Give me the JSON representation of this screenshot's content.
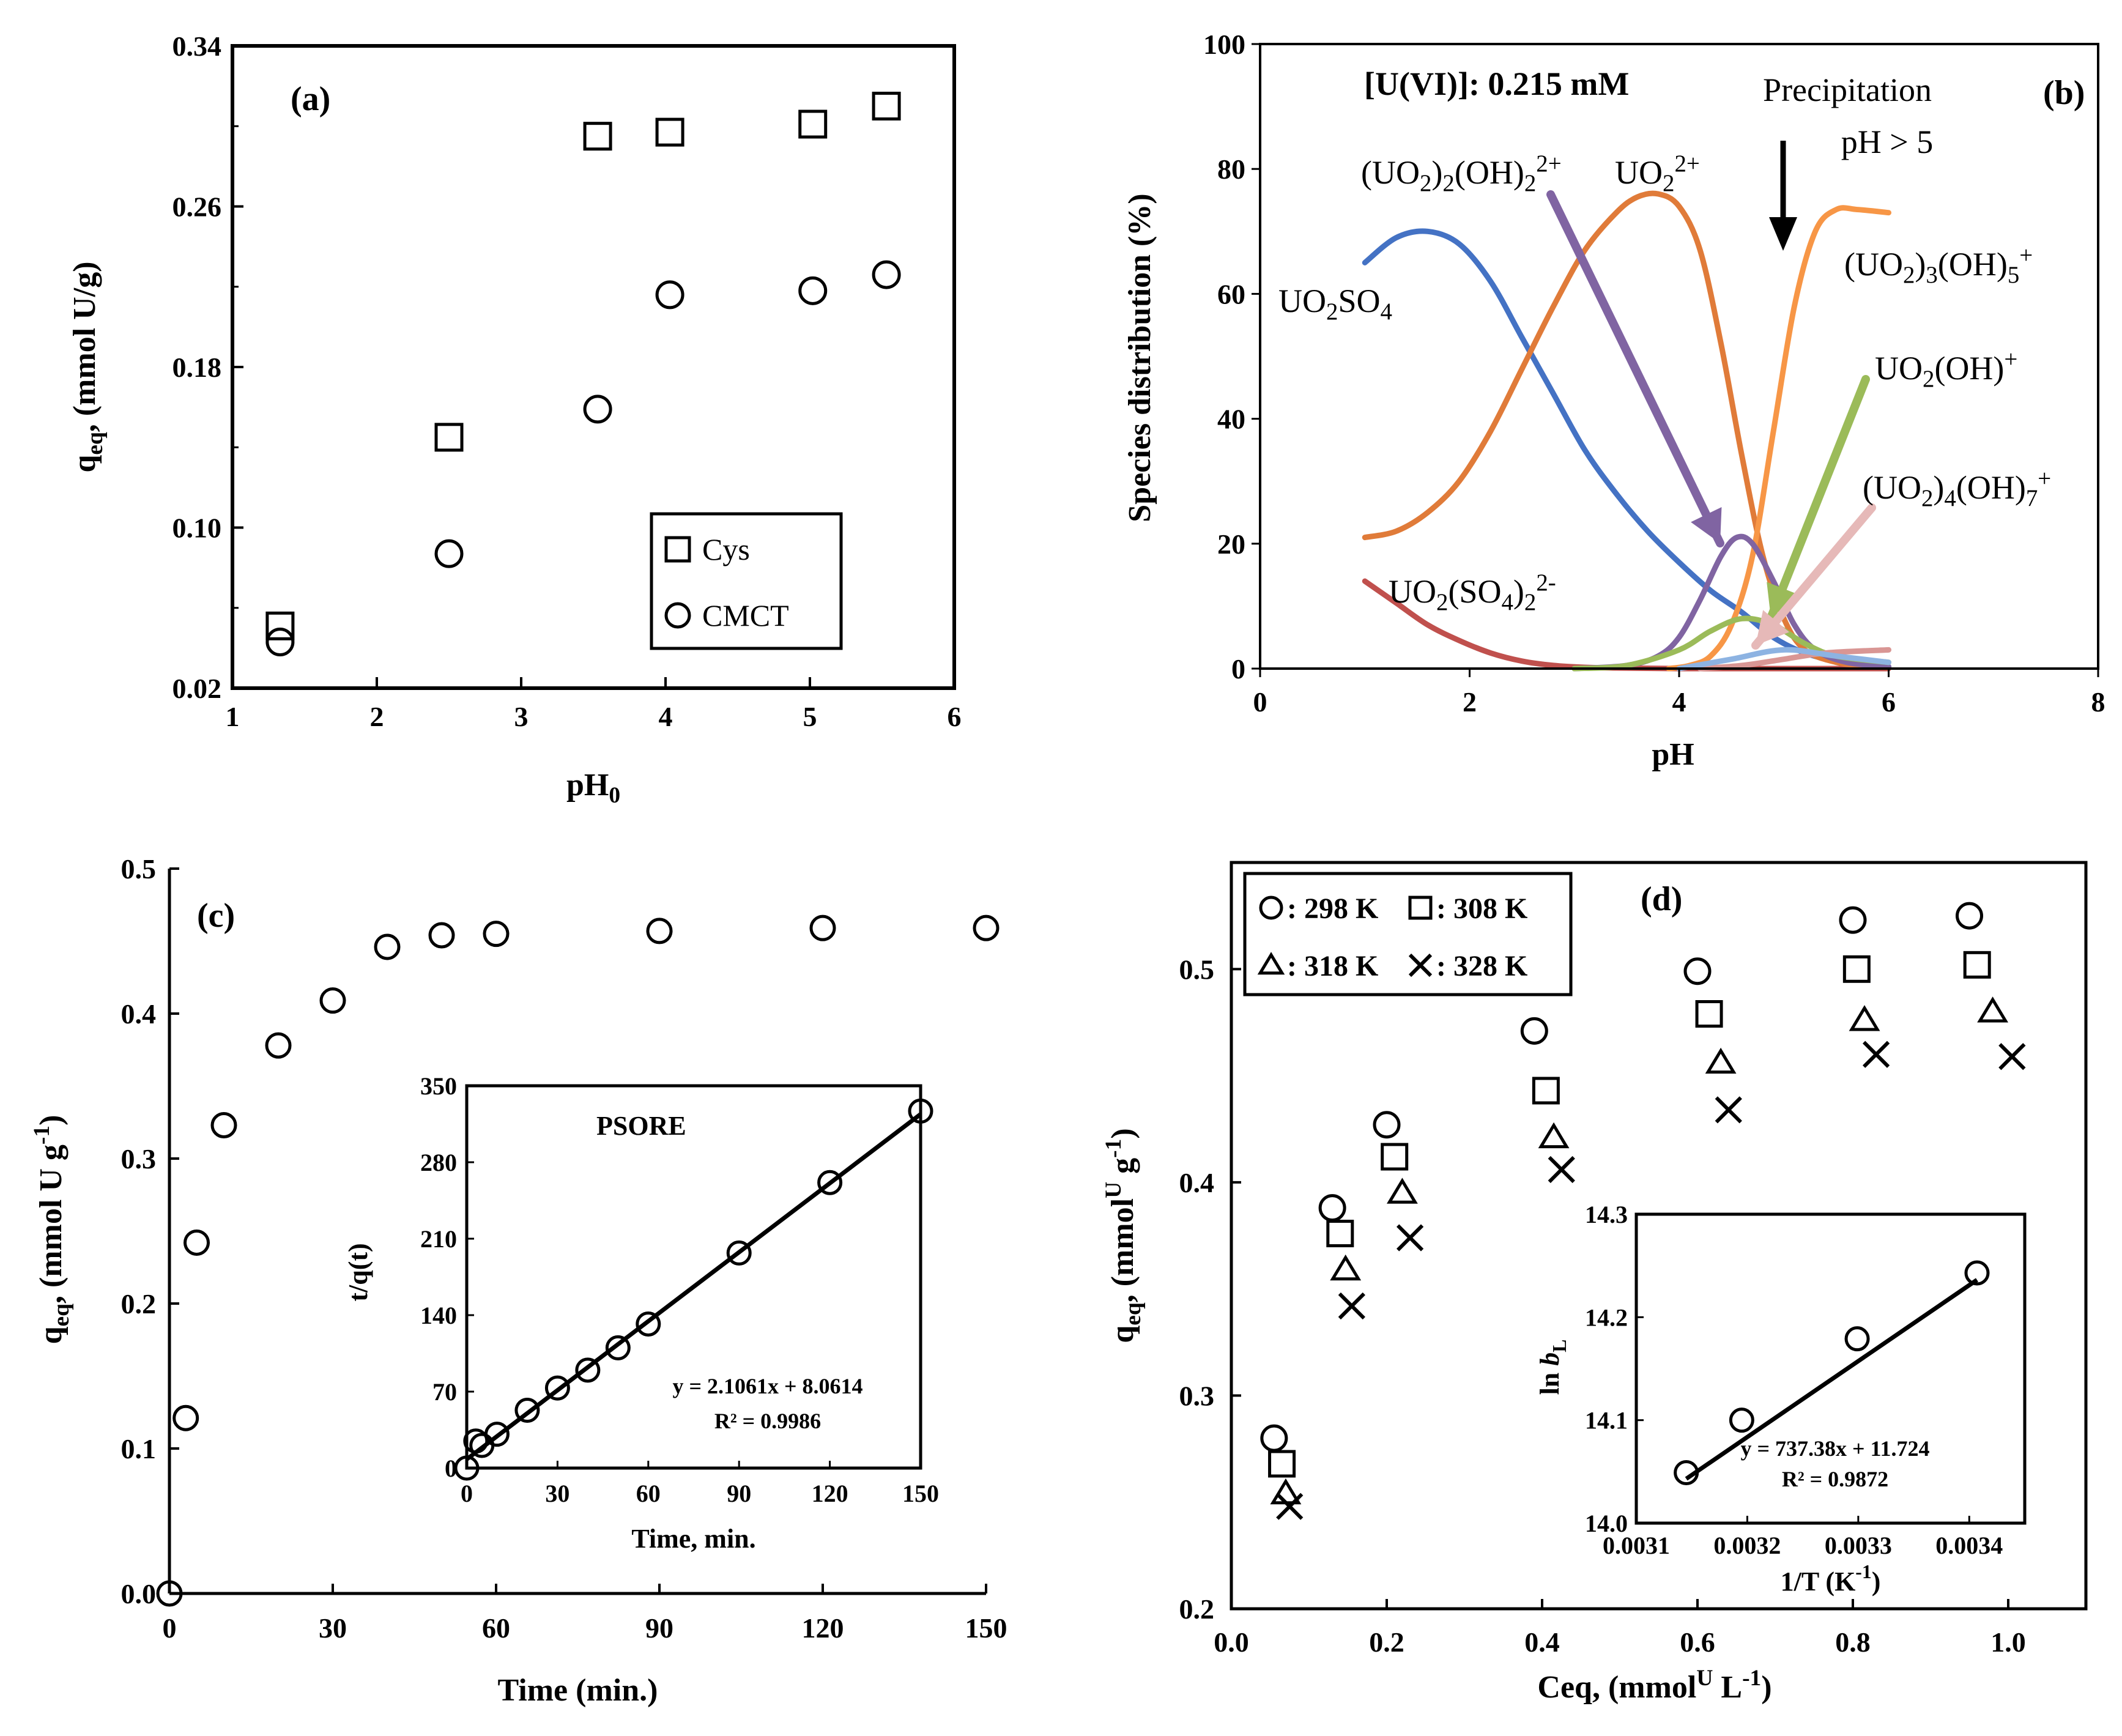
{
  "chart_data": [
    {
      "panel": "(a)",
      "type": "scatter",
      "title": "",
      "xlabel_main": "pH",
      "xlabel_sub": "0",
      "ylabel_main": "q",
      "ylabel_sub": "eq",
      "ylabel_rest": ", (mmol U/g)",
      "xlim": [
        1,
        6
      ],
      "ylim": [
        0.02,
        0.34
      ],
      "xticks": [
        1,
        2,
        3,
        4,
        5,
        6
      ],
      "yticks": [
        0.02,
        0.1,
        0.18,
        0.26,
        0.34
      ],
      "yticklabels": [
        "0.02",
        "0.10",
        "0.18",
        "0.26",
        "0.34"
      ],
      "legend_position": "bottom-right",
      "series": [
        {
          "name": "Cys",
          "marker": "square",
          "x": [
            1.33,
            2.5,
            3.53,
            4.03,
            5.02,
            5.53
          ],
          "y": [
            0.051,
            0.145,
            0.295,
            0.297,
            0.301,
            0.31
          ]
        },
        {
          "name": "CMCT",
          "marker": "circle",
          "x": [
            1.33,
            2.5,
            3.53,
            4.03,
            5.02,
            5.53
          ],
          "y": [
            0.043,
            0.087,
            0.159,
            0.216,
            0.218,
            0.226
          ]
        }
      ]
    },
    {
      "panel": "(b)",
      "type": "line",
      "title": "",
      "xlabel": "pH",
      "ylabel": "Species distribution  (%)",
      "xlim": [
        0,
        8
      ],
      "ylim": [
        0,
        100
      ],
      "xticks": [
        0,
        2,
        4,
        6,
        8
      ],
      "yticks": [
        0,
        20,
        40,
        60,
        80,
        100
      ],
      "concentration_note": "[U(VI)]:  0.215 mM",
      "precipitation_line1": "Precipitation",
      "precipitation_line2": "pH > 5",
      "series": [
        {
          "color": "#4472c4",
          "x": [
            1.0,
            1.3,
            1.6,
            1.9,
            2.2,
            2.5,
            2.8,
            3.1,
            3.4,
            3.7,
            4.0,
            4.3,
            4.6,
            4.9,
            5.2,
            5.5,
            5.8,
            6.0
          ],
          "y": [
            65,
            69,
            70,
            68,
            62,
            53,
            44,
            35,
            28,
            22,
            17,
            12.5,
            9,
            5,
            2.5,
            1.2,
            0.6,
            0.3
          ]
        },
        {
          "color": "#c0504d",
          "x": [
            1.0,
            1.3,
            1.6,
            1.9,
            2.2,
            2.5,
            2.8,
            3.1,
            3.4,
            4.0,
            5.0,
            6.0
          ],
          "y": [
            14,
            10.5,
            7,
            4.5,
            2.5,
            1.2,
            0.5,
            0.2,
            0.1,
            0,
            0,
            0
          ]
        },
        {
          "color": "#e07b39",
          "x": [
            1.0,
            1.3,
            1.6,
            1.9,
            2.2,
            2.5,
            2.8,
            3.1,
            3.4,
            3.6,
            3.8,
            4.0,
            4.2,
            4.4,
            4.6,
            4.8,
            5.0,
            5.2,
            5.5,
            5.8,
            6.0
          ],
          "y": [
            21,
            22,
            25,
            30,
            38,
            48,
            58,
            67,
            73,
            75.5,
            76,
            74,
            67,
            52,
            34,
            18,
            8,
            3,
            1,
            0.4,
            0.2
          ]
        },
        {
          "color": "#f79646",
          "x": [
            3.9,
            4.1,
            4.3,
            4.5,
            4.7,
            4.9,
            5.1,
            5.3,
            5.5,
            5.7,
            6.0
          ],
          "y": [
            0,
            0.5,
            2,
            7,
            18,
            38,
            58,
            70,
            73.5,
            73.5,
            73
          ]
        },
        {
          "color": "#8064a2",
          "x": [
            3.0,
            3.5,
            3.8,
            4.0,
            4.2,
            4.4,
            4.55,
            4.7,
            4.9,
            5.1,
            5.3,
            5.6,
            6.0
          ],
          "y": [
            0,
            0.5,
            2,
            5,
            11,
            18,
            21,
            20,
            14,
            7,
            3,
            1,
            0.3
          ]
        },
        {
          "color": "#9bbb59",
          "x": [
            3.0,
            3.5,
            4.0,
            4.3,
            4.6,
            4.9,
            5.2,
            5.5,
            6.0
          ],
          "y": [
            0,
            0.5,
            3,
            6,
            8,
            7,
            4,
            2,
            1
          ]
        },
        {
          "color": "#d99694",
          "x": [
            4.2,
            4.6,
            5.0,
            5.4,
            6.0
          ],
          "y": [
            0,
            0.5,
            1.5,
            2.5,
            3
          ]
        },
        {
          "color": "#8db3e2",
          "x": [
            4.0,
            4.5,
            5.0,
            5.5,
            6.0
          ],
          "y": [
            0,
            1.5,
            3,
            2,
            1
          ]
        }
      ],
      "annotations": [
        {
          "main": "UO",
          "sub1": "2",
          "main2": "SO",
          "sub2": "4"
        },
        {
          "main": "UO",
          "sub1": "2",
          "main2": "(SO",
          "sub2": "4",
          "main3": ")",
          "sub3": "2",
          "sup": "2-"
        },
        {
          "main": "(UO",
          "sub1": "2",
          "main2": ")",
          "sub2": "2",
          "main3": "(OH)",
          "sub3": "2",
          "sup": "2+"
        },
        {
          "main": "UO",
          "sub1": "2",
          "sup": "2+"
        },
        {
          "main": "(UO",
          "sub1": "2",
          "main2": ")",
          "sub2": "3",
          "main3": "(OH)",
          "sub3": "5",
          "sup": "+"
        },
        {
          "main": "UO",
          "sub1": "2",
          "main2": "(OH)",
          "sup": "+"
        },
        {
          "main": "(UO",
          "sub1": "2",
          "main2": ")",
          "sub2": "4",
          "main3": "(OH)",
          "sub3": "7",
          "sup": "+"
        }
      ]
    },
    {
      "panel": "(c)",
      "type": "scatter",
      "title": "",
      "xlabel": "Time (min.)",
      "ylabel_main": "q",
      "ylabel_sub": "eq",
      "ylabel_rest": ", (mmol U g",
      "ylabel_sup": "-1",
      "ylabel_end": ")",
      "xlim": [
        0,
        150
      ],
      "ylim": [
        0,
        0.5
      ],
      "xticks": [
        0,
        30,
        60,
        90,
        120,
        150
      ],
      "yticks": [
        0.0,
        0.1,
        0.2,
        0.3,
        0.4,
        0.5
      ],
      "yticklabels": [
        "0.0",
        "0.1",
        "0.2",
        "0.3",
        "0.4",
        "0.5"
      ],
      "series": [
        {
          "marker": "circle",
          "x": [
            0,
            3,
            5,
            10,
            20,
            30,
            40,
            50,
            60,
            90,
            120,
            150
          ],
          "y": [
            0,
            0.121,
            0.242,
            0.323,
            0.378,
            0.409,
            0.446,
            0.454,
            0.455,
            0.457,
            0.459,
            0.459
          ]
        }
      ],
      "inset": {
        "title": "PSORE",
        "xlabel": "Time, min.",
        "ylabel": "t/q(t)",
        "xlim": [
          0,
          150
        ],
        "ylim": [
          0,
          350
        ],
        "xticks": [
          0,
          30,
          60,
          90,
          120,
          150
        ],
        "yticks": [
          0,
          70,
          140,
          210,
          280,
          350
        ],
        "points": {
          "x": [
            0,
            3,
            5,
            10,
            20,
            30,
            40,
            50,
            60,
            90,
            120,
            150
          ],
          "y": [
            0,
            24.8,
            20.7,
            31,
            52.9,
            73.3,
            89.7,
            110.1,
            131.9,
            196.9,
            261.4,
            326.8
          ]
        },
        "fit": {
          "slope": 2.1061,
          "intercept": 8.0614,
          "x_range": [
            0,
            150
          ]
        },
        "equation": "y = 2.1061x + 8.0614",
        "r2": "R² = 0.9986"
      }
    },
    {
      "panel": "(d)",
      "type": "scatter",
      "title": "",
      "xlabel_main": "Ceq, (mmol",
      "xlabel_sup": "U",
      "xlabel_rest": " L",
      "xlabel_sup2": "-1",
      "xlabel_end": ")",
      "ylabel_main": "q",
      "ylabel_sub": "eq",
      "ylabel_rest": ", (mmol",
      "ylabel_sup": "U",
      "ylabel_rest2": " g",
      "ylabel_sup2": "-1",
      "ylabel_end": ")",
      "xlim": [
        0,
        1.1
      ],
      "ylim": [
        0.2,
        0.55
      ],
      "xticks": [
        0.0,
        0.2,
        0.4,
        0.6,
        0.8,
        1.0
      ],
      "xticklabels": [
        "0.0",
        "0.2",
        "0.4",
        "0.6",
        "0.8",
        "1.0"
      ],
      "yticks": [
        0.2,
        0.3,
        0.4,
        0.5
      ],
      "yticklabels": [
        "0.2",
        "0.3",
        "0.4",
        "0.5"
      ],
      "legend_position": "top-left",
      "series": [
        {
          "name": ": 298 K",
          "marker": "circle",
          "x": [
            0.055,
            0.13,
            0.2,
            0.39,
            0.6,
            0.8,
            0.95
          ],
          "y": [
            0.28,
            0.388,
            0.427,
            0.471,
            0.499,
            0.523,
            0.525
          ]
        },
        {
          "name": ": 308 K",
          "marker": "square",
          "x": [
            0.065,
            0.14,
            0.21,
            0.405,
            0.615,
            0.805,
            0.96
          ],
          "y": [
            0.268,
            0.376,
            0.412,
            0.443,
            0.479,
            0.5,
            0.502
          ]
        },
        {
          "name": ": 318 K",
          "marker": "triangle",
          "x": [
            0.07,
            0.147,
            0.22,
            0.415,
            0.63,
            0.815,
            0.98
          ],
          "y": [
            0.254,
            0.359,
            0.395,
            0.421,
            0.456,
            0.476,
            0.48
          ]
        },
        {
          "name": ": 328 K",
          "marker": "cross",
          "x": [
            0.075,
            0.155,
            0.23,
            0.425,
            0.64,
            0.83,
            1.005
          ],
          "y": [
            0.248,
            0.342,
            0.374,
            0.406,
            0.434,
            0.46,
            0.459
          ]
        }
      ],
      "inset": {
        "xlabel_main": "1/T (K",
        "xlabel_sup": "-1",
        "xlabel_end": ")",
        "ylabel_main": "ln ",
        "ylabel_italic": "b",
        "ylabel_sub": "L",
        "xlim": [
          0.0031,
          0.00345
        ],
        "ylim": [
          14.0,
          14.3
        ],
        "xticks": [
          0.0031,
          0.0032,
          0.0033,
          0.0034
        ],
        "xticklabels": [
          "0.0031",
          "0.0032",
          "0.0033",
          "0.0034"
        ],
        "yticks": [
          14.0,
          14.1,
          14.2,
          14.3
        ],
        "yticklabels": [
          "14.0",
          "14.1",
          "14.2",
          "14.3"
        ],
        "points": {
          "x": [
            0.003145,
            0.003195,
            0.003299,
            0.003407
          ],
          "y": [
            14.049,
            14.1,
            14.179,
            14.243
          ]
        },
        "fit": {
          "slope": 737.38,
          "intercept": 11.724,
          "x_range": [
            0.003145,
            0.003407
          ]
        },
        "equation": "y = 737.38x + 11.724",
        "r2": "R² = 0.9872"
      }
    }
  ]
}
